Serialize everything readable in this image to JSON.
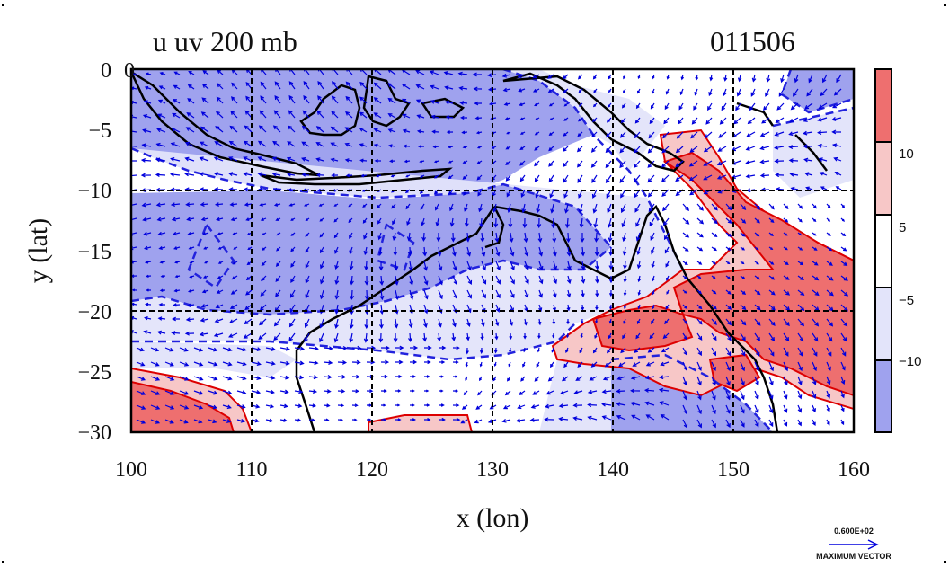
{
  "title": {
    "left": "u uv 200 mb",
    "right": "011506"
  },
  "axes": {
    "xlabel": "x (lon)",
    "ylabel": "y (lat)",
    "xticks": [
      "100",
      "110",
      "120",
      "130",
      "140",
      "150",
      "160"
    ],
    "yticks": [
      "0",
      "−5",
      "−10",
      "−15",
      "−20",
      "−25",
      "−30"
    ],
    "corner_tick": "0"
  },
  "colorbar": {
    "labels": [
      "10",
      "5",
      "−5",
      "−10"
    ],
    "colors": [
      "#ee6f6f",
      "#f7c7c7",
      "#ffffff",
      "#e3e4fa",
      "#9fa2ee"
    ]
  },
  "vector_key": {
    "magnitude": "0.600E+02",
    "label": "MAXIMUM VECTOR"
  },
  "colors": {
    "strong_neg": "#9fa2ee",
    "weak_neg": "#e3e4fa",
    "weak_pos": "#f7c7c7",
    "strong_pos": "#ee6f6f",
    "wind_vectors": "#0000dd",
    "contour_lines": "#2222dd",
    "pos_contour": "#dd0000",
    "coastline": "#000000"
  },
  "chart_data": {
    "type": "map",
    "variable": "u uv 200 mb",
    "date_code": "011506",
    "lon_range": [
      100,
      160
    ],
    "lat_range": [
      -30,
      0
    ],
    "grid_lon": [
      110,
      120,
      130,
      140,
      150
    ],
    "grid_lat": [
      -10,
      -20
    ],
    "contour_levels": [
      -10,
      -5,
      5,
      10
    ],
    "max_vector": 60
  }
}
